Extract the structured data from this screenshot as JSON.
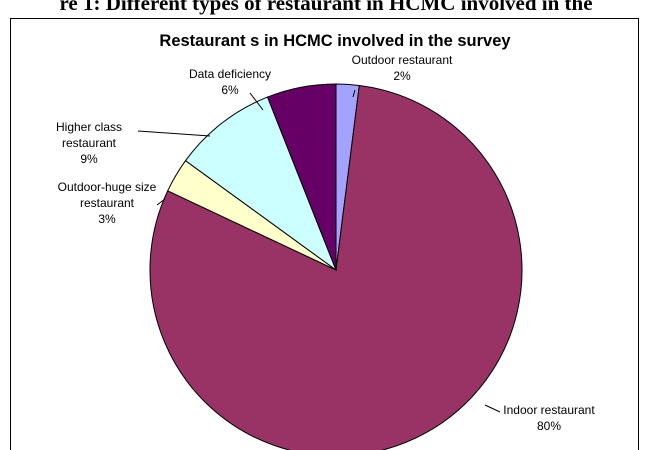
{
  "figure_caption": "re 1: Different types of restaurant in HCMC involved in the",
  "chart_data": {
    "type": "pie",
    "title": "Restaurant s in HCMC involved in the survey",
    "start_angle_deg": 0,
    "direction": "clockwise",
    "slices": [
      {
        "label": "Outdoor restaurant",
        "pct_label": "2%",
        "value": 2,
        "color": "#a3a3ff"
      },
      {
        "label": "Indoor restaurant",
        "pct_label": "80%",
        "value": 80,
        "color": "#993366"
      },
      {
        "label": "Outdoor-huge size restaurant",
        "pct_label": "3%",
        "value": 3,
        "color": "#ffffcc"
      },
      {
        "label": "Higher class restaurant",
        "pct_label": "9%",
        "value": 9,
        "color": "#ccffff"
      },
      {
        "label": "Data deficiency",
        "pct_label": "6%",
        "value": 6,
        "color": "#660066"
      }
    ],
    "label_lines": {
      "0": [
        "Outdoor restaurant",
        "2%"
      ],
      "1": [
        "Indoor restaurant",
        "80%"
      ],
      "2": [
        "Outdoor-huge size",
        "restaurant",
        "3%"
      ],
      "3": [
        "Higher class",
        "restaurant",
        "9%"
      ],
      "4": [
        "Data deficiency",
        "6%"
      ]
    }
  }
}
